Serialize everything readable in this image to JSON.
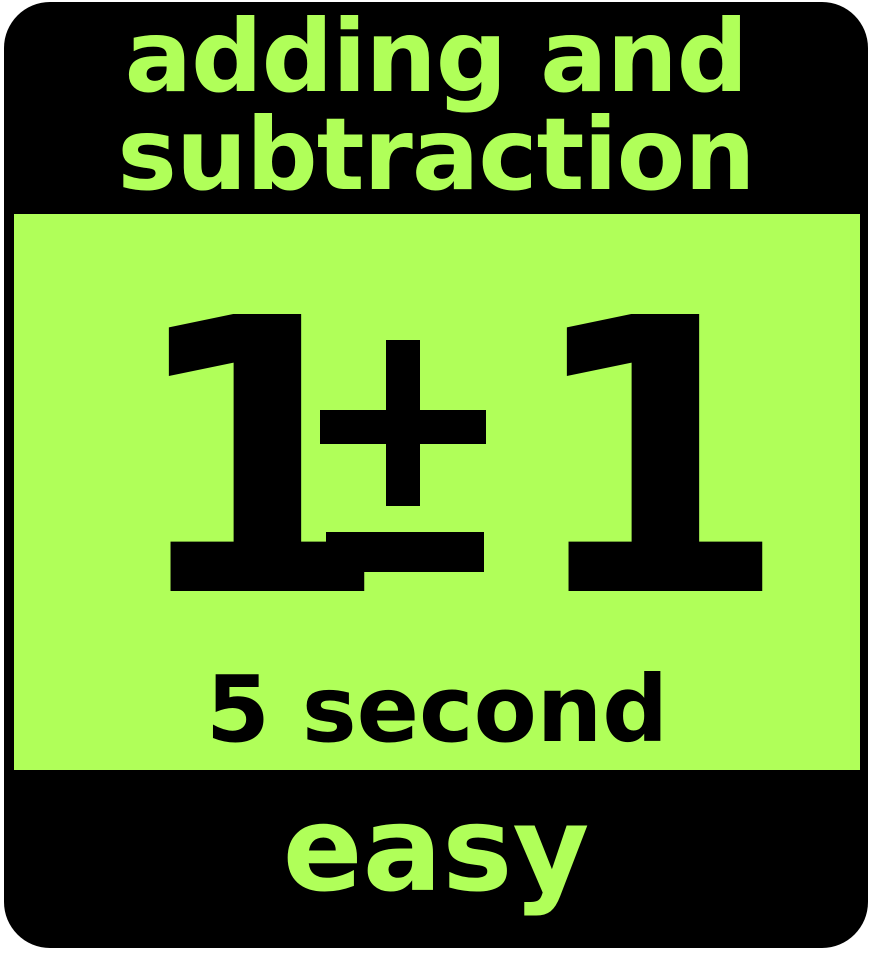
{
  "title": {
    "line1": "adding and",
    "line2": "subtraction"
  },
  "equation": {
    "left_operand": "1",
    "operator": "±",
    "right_operand": "1"
  },
  "subtitle": "5 second",
  "difficulty": "easy",
  "icons": {
    "operator_icon": "plus-minus-icon"
  },
  "colors": {
    "accent_green": "#b0ff59",
    "background": "#000000",
    "text_dark": "#000000"
  }
}
